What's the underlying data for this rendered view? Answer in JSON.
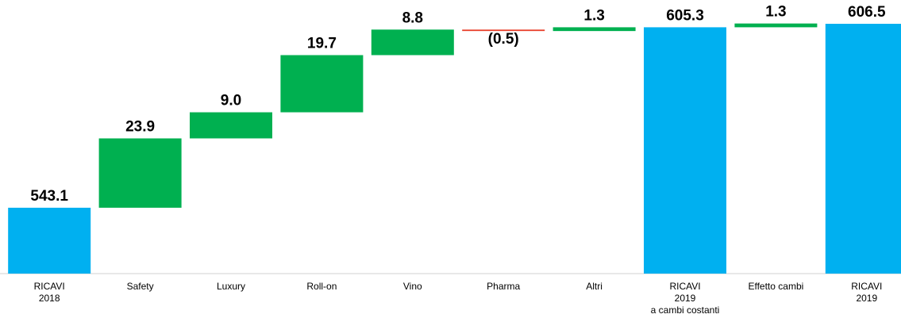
{
  "chart_data": {
    "type": "waterfall",
    "categories": [
      "RICAVI\n2018",
      "Safety",
      "Luxury",
      "Roll-on",
      "Vino",
      "Pharma",
      "Altri",
      "RICAVI\n2019\na  cambi costanti",
      "Effetto cambi",
      "RICAVI\n2019"
    ],
    "values": [
      543.1,
      23.9,
      9.0,
      19.7,
      8.8,
      -0.5,
      1.3,
      605.3,
      1.3,
      606.5
    ],
    "value_labels": [
      "543.1",
      "23.9",
      "9.0",
      "19.7",
      "8.8",
      "(0.5)",
      "1.3",
      "605.3",
      "1.3",
      "606.5"
    ],
    "measure": [
      "absolute",
      "relative",
      "relative",
      "relative",
      "relative",
      "relative",
      "relative",
      "absolute",
      "relative",
      "absolute"
    ],
    "colors": {
      "total": "#00b0f0",
      "increase": "#00b050",
      "decrease": "#e8412c"
    },
    "ylim": [
      520.4,
      614.7
    ]
  }
}
